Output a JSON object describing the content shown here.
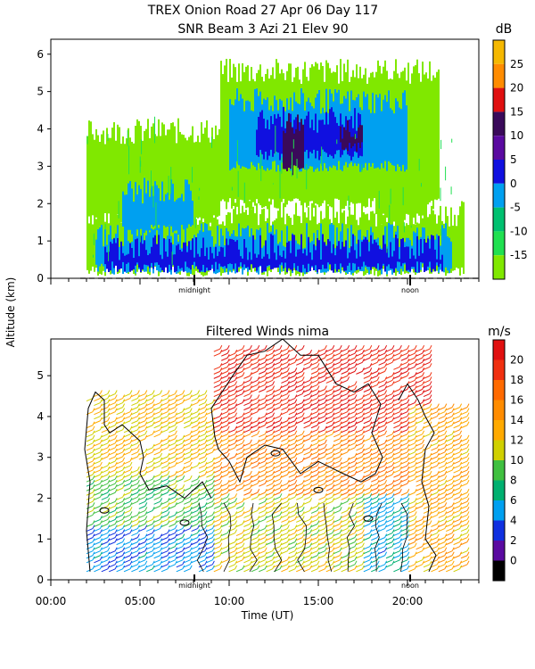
{
  "chart_data": [
    {
      "type": "heatmap",
      "title": "TREX Onion Road  27 Apr 06 Day 117",
      "subtitle": "SNR Beam 3 Azi  21 Elev 90",
      "ylabel": "Altitude (km)",
      "xlabel": "",
      "colorbar_unit": "dB",
      "colorbar_ticks": [
        "25",
        "20",
        "15",
        "10",
        "5",
        "0",
        "-5",
        "-10",
        "-15"
      ],
      "colorbar_colors": [
        "#f5b800",
        "#ff8c00",
        "#e01010",
        "#3a0a5a",
        "#5a0aa0",
        "#1010e0",
        "#00a0f0",
        "#00c070",
        "#20e050",
        "#80e800"
      ],
      "y_ticks": [
        "0",
        "1",
        "2",
        "3",
        "4",
        "5",
        "6"
      ],
      "ylim": [
        0,
        6.4
      ],
      "x_markers": [
        "midnight",
        "noon"
      ],
      "regions": [
        {
          "level": 1,
          "x0": 2.0,
          "x1": 23.2,
          "y0": 0.2,
          "y1": 1.6
        },
        {
          "level": 1,
          "x0": 2.0,
          "x1": 9.5,
          "y0": 1.6,
          "y1": 3.8
        },
        {
          "level": 1,
          "x0": 9.5,
          "x1": 21.8,
          "y0": 2.0,
          "y1": 5.4
        },
        {
          "level": 1,
          "x0": 18.2,
          "x1": 21.0,
          "y0": 1.6,
          "y1": 5.0
        },
        {
          "level": 2,
          "x0": 2.5,
          "x1": 22.5,
          "y0": 0.25,
          "y1": 1.0
        },
        {
          "level": 2,
          "x0": 10.0,
          "x1": 20.0,
          "y0": 3.0,
          "y1": 4.6
        },
        {
          "level": 2,
          "x0": 4.0,
          "x1": 8.0,
          "y0": 1.3,
          "y1": 2.2
        },
        {
          "level": 3,
          "x0": 3.0,
          "x1": 22.0,
          "y0": 0.3,
          "y1": 0.7
        },
        {
          "level": 3,
          "x0": 11.5,
          "x1": 17.5,
          "y0": 3.3,
          "y1": 4.1
        },
        {
          "level": 4,
          "x0": 13.0,
          "x1": 14.2,
          "y0": 2.9,
          "y1": 4.0
        },
        {
          "level": 4,
          "x0": 16.2,
          "x1": 17.4,
          "y0": 3.5,
          "y1": 3.9
        }
      ]
    },
    {
      "type": "scatter",
      "title": "Filtered Winds nima",
      "xlabel": "Time (UT)",
      "ylabel": "Altitude (km)",
      "colorbar_unit": "m/s",
      "colorbar_ticks": [
        "20",
        "18",
        "16",
        "14",
        "12",
        "10",
        "8",
        "6",
        "4",
        "2",
        "0"
      ],
      "colorbar_colors": [
        "#e01010",
        "#f03010",
        "#ff6a00",
        "#ff8c00",
        "#ffaa00",
        "#d0d000",
        "#40c040",
        "#00b070",
        "#00a0f0",
        "#1030e0",
        "#5a0aa0",
        "#000000"
      ],
      "x_ticks": [
        "00:00",
        "05:00",
        "10:00",
        "15:00",
        "20:00"
      ],
      "x_values": [
        0,
        5,
        10,
        15,
        20
      ],
      "y_ticks": [
        "0",
        "1",
        "2",
        "3",
        "4",
        "5"
      ],
      "xlim": [
        0,
        24
      ],
      "ylim": [
        0,
        5.9
      ],
      "x_markers": [
        "midnight",
        "noon"
      ],
      "wind_speed_model": [
        {
          "x0": 2.0,
          "x1": 9.0,
          "y0": 0.2,
          "y1": 1.2,
          "speed": 5
        },
        {
          "x0": 2.0,
          "x1": 9.0,
          "y0": 1.2,
          "y1": 2.5,
          "speed": 9
        },
        {
          "x0": 2.0,
          "x1": 9.0,
          "y0": 2.5,
          "y1": 4.5,
          "speed": 12
        },
        {
          "x0": 9.0,
          "x1": 20.0,
          "y0": 0.2,
          "y1": 2.0,
          "speed": 11
        },
        {
          "x0": 9.0,
          "x1": 21.0,
          "y0": 2.0,
          "y1": 3.5,
          "speed": 15
        },
        {
          "x0": 9.0,
          "x1": 21.0,
          "y0": 3.5,
          "y1": 5.6,
          "speed": 19
        },
        {
          "x0": 17.5,
          "x1": 20.5,
          "y0": 0.2,
          "y1": 2.0,
          "speed": 6
        },
        {
          "x0": 20.0,
          "x1": 23.2,
          "y0": 0.2,
          "y1": 4.2,
          "speed": 13
        }
      ]
    }
  ]
}
